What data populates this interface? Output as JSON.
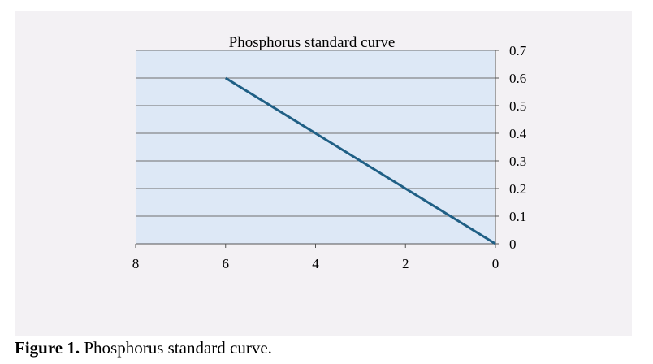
{
  "chart_data": {
    "type": "line",
    "title": "Phosphorus standard curve",
    "xlabel": "",
    "ylabel": "",
    "x_reversed": true,
    "xlim": [
      0,
      8
    ],
    "ylim": [
      0,
      0.7
    ],
    "x_ticks": [
      "8",
      "6",
      "4",
      "2",
      "0"
    ],
    "y_ticks": [
      "0",
      "0.1",
      "0.2",
      "0.3",
      "0.4",
      "0.5",
      "0.6",
      "0.7"
    ],
    "y_axis_side": "right",
    "grid": true,
    "legend": "none",
    "series": [
      {
        "x": [
          0,
          2,
          4,
          6
        ],
        "y": [
          0,
          0.2,
          0.4,
          0.6
        ],
        "color": "#1f5f85"
      }
    ]
  },
  "caption": {
    "label": "Figure 1.",
    "text": " Phosphorus standard curve."
  },
  "colors": {
    "panel_background": "#f3f1f4",
    "plot_area": "#dde8f6",
    "line": "#1f5f85",
    "gridline": "#6e6e6e"
  }
}
